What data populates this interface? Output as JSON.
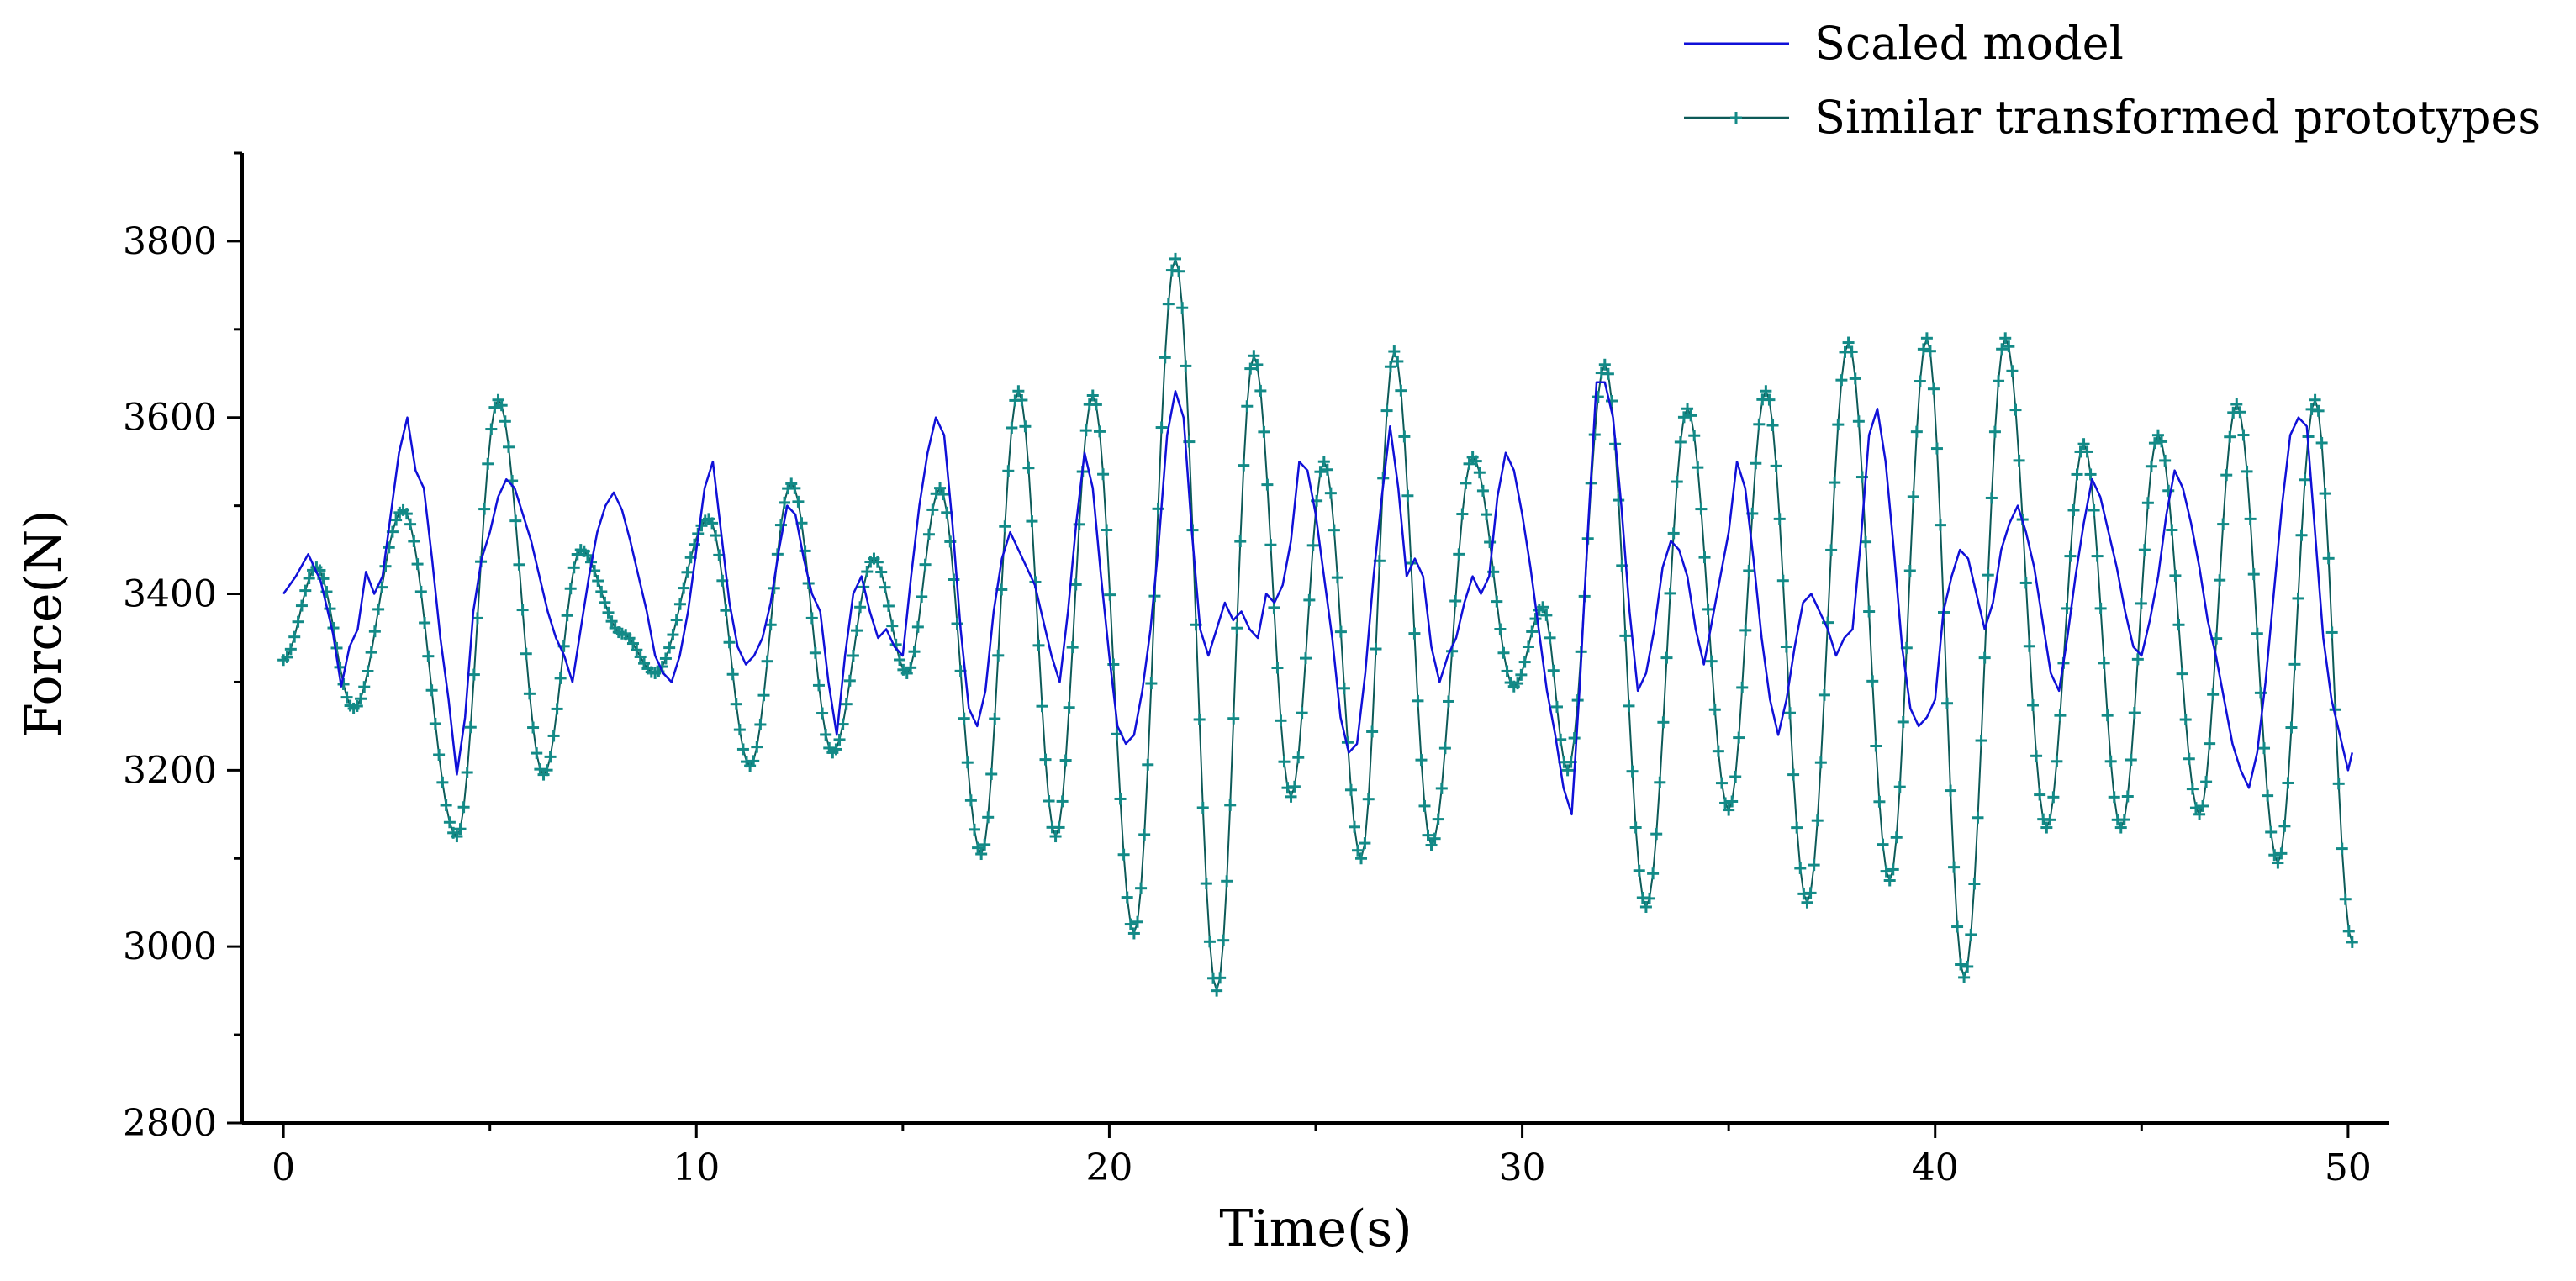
{
  "chart_data": {
    "type": "line",
    "xlabel": "Time(s)",
    "ylabel": "Force(N)",
    "xlim": [
      -1,
      51
    ],
    "ylim": [
      2800,
      3900
    ],
    "xticks": [
      0,
      10,
      20,
      30,
      40,
      50
    ],
    "yticks": [
      2800,
      3000,
      3200,
      3400,
      3600,
      3800
    ],
    "x_minor_step": 5,
    "y_minor_step": 100,
    "grid": false,
    "legend_position": "top-right",
    "colors": {
      "scaled": "#1010d8",
      "similar": "#138a87",
      "axis": "#000000"
    },
    "series": [
      {
        "name": "Scaled model",
        "style": "line",
        "points": [
          [
            0.0,
            3400
          ],
          [
            0.3,
            3420
          ],
          [
            0.6,
            3445
          ],
          [
            0.9,
            3415
          ],
          [
            1.2,
            3355
          ],
          [
            1.4,
            3295
          ],
          [
            1.6,
            3340
          ],
          [
            1.8,
            3360
          ],
          [
            2.0,
            3425
          ],
          [
            2.2,
            3400
          ],
          [
            2.4,
            3420
          ],
          [
            2.6,
            3490
          ],
          [
            2.8,
            3560
          ],
          [
            3.0,
            3600
          ],
          [
            3.2,
            3540
          ],
          [
            3.4,
            3520
          ],
          [
            3.6,
            3440
          ],
          [
            3.8,
            3350
          ],
          [
            4.0,
            3280
          ],
          [
            4.2,
            3195
          ],
          [
            4.4,
            3260
          ],
          [
            4.6,
            3380
          ],
          [
            4.8,
            3440
          ],
          [
            5.0,
            3470
          ],
          [
            5.2,
            3510
          ],
          [
            5.4,
            3530
          ],
          [
            5.6,
            3520
          ],
          [
            5.8,
            3490
          ],
          [
            6.0,
            3460
          ],
          [
            6.2,
            3420
          ],
          [
            6.4,
            3380
          ],
          [
            6.6,
            3350
          ],
          [
            6.8,
            3330
          ],
          [
            7.0,
            3300
          ],
          [
            7.2,
            3360
          ],
          [
            7.4,
            3420
          ],
          [
            7.6,
            3470
          ],
          [
            7.8,
            3500
          ],
          [
            8.0,
            3515
          ],
          [
            8.2,
            3495
          ],
          [
            8.4,
            3460
          ],
          [
            8.6,
            3420
          ],
          [
            8.8,
            3380
          ],
          [
            9.0,
            3330
          ],
          [
            9.2,
            3310
          ],
          [
            9.4,
            3300
          ],
          [
            9.6,
            3330
          ],
          [
            9.8,
            3380
          ],
          [
            10.0,
            3450
          ],
          [
            10.2,
            3520
          ],
          [
            10.4,
            3550
          ],
          [
            10.6,
            3470
          ],
          [
            10.8,
            3390
          ],
          [
            11.0,
            3340
          ],
          [
            11.2,
            3320
          ],
          [
            11.4,
            3330
          ],
          [
            11.6,
            3350
          ],
          [
            11.8,
            3390
          ],
          [
            12.0,
            3450
          ],
          [
            12.2,
            3500
          ],
          [
            12.4,
            3490
          ],
          [
            12.6,
            3440
          ],
          [
            12.8,
            3400
          ],
          [
            13.0,
            3380
          ],
          [
            13.2,
            3300
          ],
          [
            13.4,
            3240
          ],
          [
            13.6,
            3330
          ],
          [
            13.8,
            3400
          ],
          [
            14.0,
            3420
          ],
          [
            14.2,
            3380
          ],
          [
            14.4,
            3350
          ],
          [
            14.6,
            3360
          ],
          [
            14.8,
            3340
          ],
          [
            15.0,
            3330
          ],
          [
            15.2,
            3420
          ],
          [
            15.4,
            3500
          ],
          [
            15.6,
            3560
          ],
          [
            15.8,
            3600
          ],
          [
            16.0,
            3580
          ],
          [
            16.2,
            3480
          ],
          [
            16.4,
            3360
          ],
          [
            16.6,
            3270
          ],
          [
            16.8,
            3250
          ],
          [
            17.0,
            3290
          ],
          [
            17.2,
            3380
          ],
          [
            17.4,
            3440
          ],
          [
            17.6,
            3470
          ],
          [
            17.8,
            3450
          ],
          [
            18.0,
            3430
          ],
          [
            18.2,
            3410
          ],
          [
            18.4,
            3370
          ],
          [
            18.6,
            3330
          ],
          [
            18.8,
            3300
          ],
          [
            19.0,
            3380
          ],
          [
            19.2,
            3480
          ],
          [
            19.4,
            3560
          ],
          [
            19.6,
            3520
          ],
          [
            19.8,
            3420
          ],
          [
            20.0,
            3330
          ],
          [
            20.2,
            3250
          ],
          [
            20.4,
            3230
          ],
          [
            20.6,
            3240
          ],
          [
            20.8,
            3290
          ],
          [
            21.0,
            3360
          ],
          [
            21.2,
            3460
          ],
          [
            21.4,
            3580
          ],
          [
            21.6,
            3630
          ],
          [
            21.8,
            3600
          ],
          [
            22.0,
            3470
          ],
          [
            22.2,
            3360
          ],
          [
            22.4,
            3330
          ],
          [
            22.6,
            3360
          ],
          [
            22.8,
            3390
          ],
          [
            23.0,
            3370
          ],
          [
            23.2,
            3380
          ],
          [
            23.4,
            3360
          ],
          [
            23.6,
            3350
          ],
          [
            23.8,
            3400
          ],
          [
            24.0,
            3390
          ],
          [
            24.2,
            3410
          ],
          [
            24.4,
            3460
          ],
          [
            24.6,
            3550
          ],
          [
            24.8,
            3540
          ],
          [
            25.0,
            3490
          ],
          [
            25.2,
            3420
          ],
          [
            25.4,
            3350
          ],
          [
            25.6,
            3260
          ],
          [
            25.8,
            3220
          ],
          [
            26.0,
            3230
          ],
          [
            26.2,
            3310
          ],
          [
            26.4,
            3420
          ],
          [
            26.6,
            3510
          ],
          [
            26.8,
            3590
          ],
          [
            27.0,
            3520
          ],
          [
            27.2,
            3420
          ],
          [
            27.4,
            3440
          ],
          [
            27.6,
            3420
          ],
          [
            27.8,
            3340
          ],
          [
            28.0,
            3300
          ],
          [
            28.2,
            3330
          ],
          [
            28.4,
            3350
          ],
          [
            28.6,
            3390
          ],
          [
            28.8,
            3420
          ],
          [
            29.0,
            3400
          ],
          [
            29.2,
            3420
          ],
          [
            29.4,
            3510
          ],
          [
            29.6,
            3560
          ],
          [
            29.8,
            3540
          ],
          [
            30.0,
            3490
          ],
          [
            30.2,
            3430
          ],
          [
            30.4,
            3360
          ],
          [
            30.6,
            3290
          ],
          [
            30.8,
            3240
          ],
          [
            31.0,
            3180
          ],
          [
            31.2,
            3150
          ],
          [
            31.4,
            3300
          ],
          [
            31.6,
            3480
          ],
          [
            31.8,
            3640
          ],
          [
            32.0,
            3640
          ],
          [
            32.2,
            3600
          ],
          [
            32.4,
            3500
          ],
          [
            32.6,
            3380
          ],
          [
            32.8,
            3290
          ],
          [
            33.0,
            3310
          ],
          [
            33.2,
            3360
          ],
          [
            33.4,
            3430
          ],
          [
            33.6,
            3460
          ],
          [
            33.8,
            3450
          ],
          [
            34.0,
            3420
          ],
          [
            34.2,
            3360
          ],
          [
            34.4,
            3320
          ],
          [
            34.6,
            3370
          ],
          [
            34.8,
            3420
          ],
          [
            35.0,
            3470
          ],
          [
            35.2,
            3550
          ],
          [
            35.4,
            3520
          ],
          [
            35.6,
            3440
          ],
          [
            35.8,
            3350
          ],
          [
            36.0,
            3280
          ],
          [
            36.2,
            3240
          ],
          [
            36.4,
            3280
          ],
          [
            36.6,
            3340
          ],
          [
            36.8,
            3390
          ],
          [
            37.0,
            3400
          ],
          [
            37.2,
            3380
          ],
          [
            37.4,
            3360
          ],
          [
            37.6,
            3330
          ],
          [
            37.8,
            3350
          ],
          [
            38.0,
            3360
          ],
          [
            38.2,
            3460
          ],
          [
            38.4,
            3580
          ],
          [
            38.6,
            3610
          ],
          [
            38.8,
            3550
          ],
          [
            39.0,
            3450
          ],
          [
            39.2,
            3340
          ],
          [
            39.4,
            3270
          ],
          [
            39.6,
            3250
          ],
          [
            39.8,
            3260
          ],
          [
            40.0,
            3280
          ],
          [
            40.2,
            3380
          ],
          [
            40.4,
            3420
          ],
          [
            40.6,
            3450
          ],
          [
            40.8,
            3440
          ],
          [
            41.0,
            3400
          ],
          [
            41.2,
            3360
          ],
          [
            41.4,
            3390
          ],
          [
            41.6,
            3450
          ],
          [
            41.8,
            3480
          ],
          [
            42.0,
            3500
          ],
          [
            42.2,
            3470
          ],
          [
            42.4,
            3430
          ],
          [
            42.6,
            3370
          ],
          [
            42.8,
            3310
          ],
          [
            43.0,
            3290
          ],
          [
            43.2,
            3350
          ],
          [
            43.4,
            3420
          ],
          [
            43.6,
            3480
          ],
          [
            43.8,
            3530
          ],
          [
            44.0,
            3510
          ],
          [
            44.2,
            3470
          ],
          [
            44.4,
            3430
          ],
          [
            44.6,
            3380
          ],
          [
            44.8,
            3340
          ],
          [
            45.0,
            3330
          ],
          [
            45.2,
            3370
          ],
          [
            45.4,
            3420
          ],
          [
            45.6,
            3490
          ],
          [
            45.8,
            3540
          ],
          [
            46.0,
            3520
          ],
          [
            46.2,
            3480
          ],
          [
            46.4,
            3430
          ],
          [
            46.6,
            3370
          ],
          [
            46.8,
            3330
          ],
          [
            47.0,
            3280
          ],
          [
            47.2,
            3230
          ],
          [
            47.4,
            3200
          ],
          [
            47.6,
            3180
          ],
          [
            47.8,
            3220
          ],
          [
            48.0,
            3300
          ],
          [
            48.2,
            3400
          ],
          [
            48.4,
            3500
          ],
          [
            48.6,
            3580
          ],
          [
            48.8,
            3600
          ],
          [
            49.0,
            3590
          ],
          [
            49.2,
            3470
          ],
          [
            49.4,
            3350
          ],
          [
            49.6,
            3280
          ],
          [
            49.8,
            3240
          ],
          [
            50.0,
            3200
          ],
          [
            50.1,
            3220
          ]
        ]
      },
      {
        "name": "Similar transformed prototypes",
        "style": "line-marker",
        "marker": "plus",
        "points": [
          [
            0.0,
            3325
          ],
          [
            0.8,
            3430
          ],
          [
            1.7,
            3270
          ],
          [
            2.9,
            3495
          ],
          [
            4.2,
            3125
          ],
          [
            5.2,
            3620
          ],
          [
            6.3,
            3195
          ],
          [
            7.2,
            3450
          ],
          [
            8.2,
            3355
          ],
          [
            9.0,
            3310
          ],
          [
            10.3,
            3485
          ],
          [
            11.3,
            3205
          ],
          [
            12.3,
            3525
          ],
          [
            13.3,
            3220
          ],
          [
            14.3,
            3440
          ],
          [
            15.1,
            3310
          ],
          [
            15.9,
            3520
          ],
          [
            16.9,
            3105
          ],
          [
            17.8,
            3630
          ],
          [
            18.7,
            3125
          ],
          [
            19.6,
            3625
          ],
          [
            20.6,
            3015
          ],
          [
            21.6,
            3780
          ],
          [
            22.6,
            2950
          ],
          [
            23.5,
            3670
          ],
          [
            24.4,
            3170
          ],
          [
            25.2,
            3550
          ],
          [
            26.1,
            3100
          ],
          [
            26.9,
            3675
          ],
          [
            27.8,
            3115
          ],
          [
            28.8,
            3555
          ],
          [
            29.8,
            3295
          ],
          [
            30.5,
            3385
          ],
          [
            31.1,
            3200
          ],
          [
            32.0,
            3660
          ],
          [
            33.0,
            3045
          ],
          [
            34.0,
            3610
          ],
          [
            35.0,
            3155
          ],
          [
            35.9,
            3630
          ],
          [
            36.9,
            3050
          ],
          [
            37.9,
            3685
          ],
          [
            38.9,
            3075
          ],
          [
            39.8,
            3690
          ],
          [
            40.7,
            2965
          ],
          [
            41.7,
            3690
          ],
          [
            42.7,
            3135
          ],
          [
            43.6,
            3570
          ],
          [
            44.5,
            3135
          ],
          [
            45.4,
            3580
          ],
          [
            46.4,
            3150
          ],
          [
            47.3,
            3615
          ],
          [
            48.3,
            3095
          ],
          [
            49.2,
            3620
          ],
          [
            50.1,
            3005
          ]
        ]
      }
    ]
  }
}
